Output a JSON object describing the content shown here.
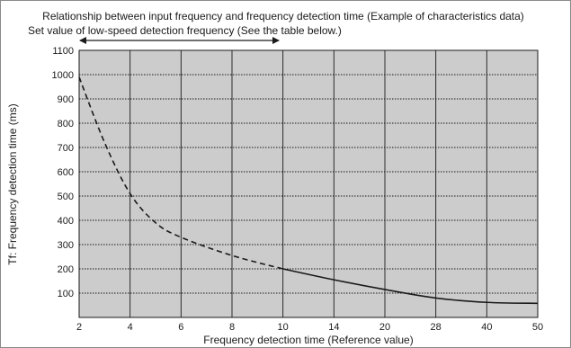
{
  "chart_data": {
    "type": "line",
    "title": "Relationship between input frequency and frequency detection time (Example of characteristics data)",
    "annotation": "Set value of low-speed detection frequency (See the table below.)",
    "xlabel": "Frequency detection time (Reference value)",
    "ylabel": "Tf: Frequency detection time (ms)",
    "x_ticks": [
      "2",
      "4",
      "6",
      "8",
      "10",
      "14",
      "20",
      "28",
      "40",
      "50"
    ],
    "y_ticks": [
      "100",
      "200",
      "300",
      "400",
      "500",
      "600",
      "700",
      "800",
      "900",
      "1000",
      "1100"
    ],
    "ylim": [
      0,
      1100
    ],
    "grid": true,
    "plot_background": "#cccccc",
    "line_color": "#1a1a1a",
    "series": [
      {
        "style": "dashed",
        "x": [
          "2",
          "3",
          "4",
          "5",
          "6",
          "8",
          "10"
        ],
        "y": [
          990,
          720,
          510,
          390,
          330,
          255,
          200
        ]
      },
      {
        "style": "solid",
        "x": [
          "10",
          "14",
          "20",
          "28",
          "40",
          "50"
        ],
        "y": [
          200,
          155,
          115,
          80,
          62,
          58
        ]
      }
    ]
  }
}
